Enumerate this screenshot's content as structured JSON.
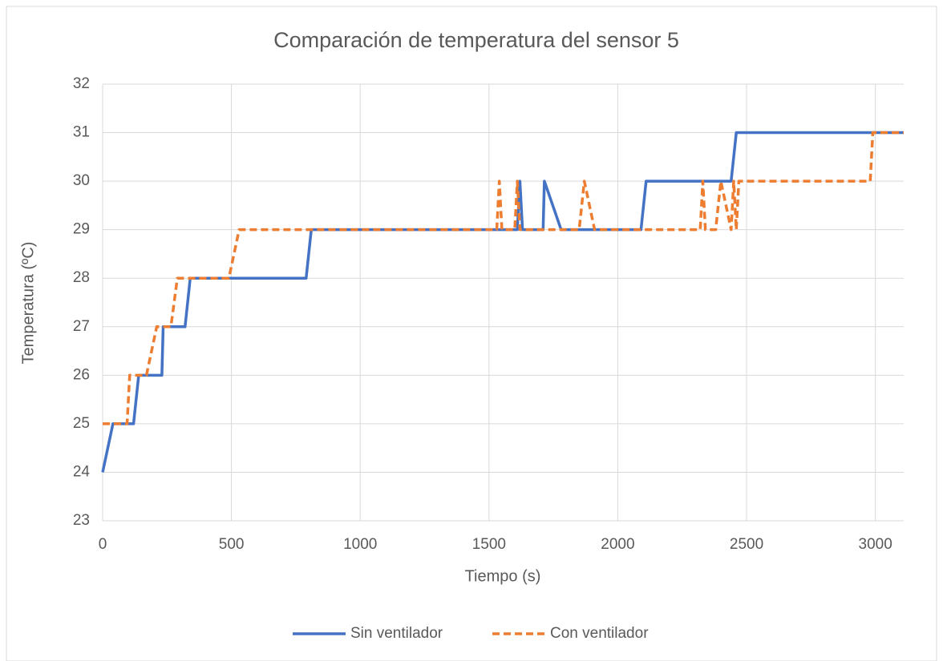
{
  "chart_data": {
    "type": "line",
    "title": "Comparación de temperatura del sensor 5",
    "x_label": "Tiempo (s)",
    "y_label": "Temperatura (ºC)",
    "xlim": [
      0,
      3110
    ],
    "xticks": [
      0,
      500,
      1000,
      1500,
      2000,
      2500,
      3000
    ],
    "ylim": [
      23,
      32
    ],
    "yticks": [
      23,
      24,
      25,
      26,
      27,
      28,
      29,
      30,
      31,
      32
    ],
    "grid": true,
    "legend": "bottom",
    "series": [
      {
        "name": "Sin ventilador",
        "color": "#4472c4",
        "dash": false,
        "x": [
          0,
          40,
          120,
          140,
          230,
          235,
          320,
          340,
          790,
          810,
          1610,
          1620,
          1630,
          1710,
          1715,
          1780,
          2090,
          2110,
          2440,
          2460,
          3110
        ],
        "values": [
          24,
          25,
          25,
          26,
          26,
          27,
          27,
          28,
          28,
          29,
          29,
          30,
          29,
          29,
          30,
          29,
          29,
          30,
          30,
          31,
          31
        ]
      },
      {
        "name": "Con ventilador",
        "color": "#ed7d31",
        "dash": true,
        "x": [
          0,
          95,
          105,
          170,
          210,
          265,
          290,
          490,
          530,
          1530,
          1540,
          1550,
          1600,
          1610,
          1620,
          1850,
          1870,
          1910,
          2320,
          2330,
          2340,
          2380,
          2400,
          2440,
          2450,
          2460,
          2470,
          2980,
          2990,
          3110
        ],
        "values": [
          25,
          25,
          26,
          26,
          27,
          27,
          28,
          28,
          29,
          29,
          30,
          29,
          29,
          30,
          29,
          29,
          30,
          29,
          29,
          30,
          29,
          29,
          30,
          29,
          30,
          29,
          30,
          30,
          31,
          31
        ]
      }
    ]
  }
}
